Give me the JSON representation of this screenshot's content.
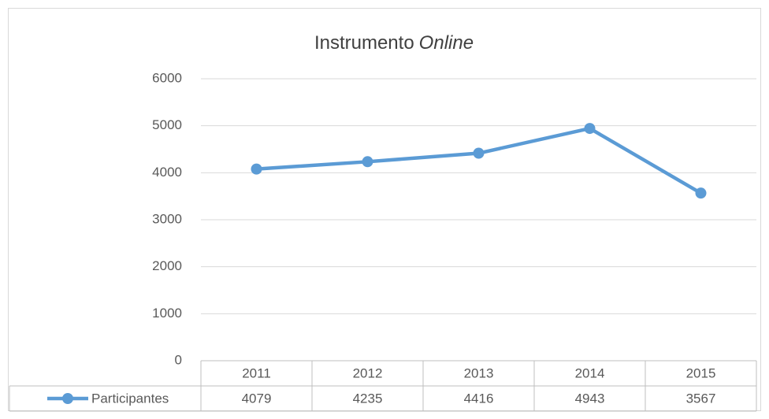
{
  "chart_data": {
    "type": "line",
    "title": [
      "Instrumento",
      "Online"
    ],
    "categories": [
      "2011",
      "2012",
      "2013",
      "2014",
      "2015"
    ],
    "series": [
      {
        "name": "Participantes",
        "color": "#5b9bd5",
        "values": [
          4079,
          4235,
          4416,
          4943,
          3567
        ]
      }
    ],
    "ylim": [
      0,
      6000
    ],
    "yticks": [
      0,
      1000,
      2000,
      3000,
      4000,
      5000,
      6000
    ],
    "grid": true,
    "data_table": true
  }
}
